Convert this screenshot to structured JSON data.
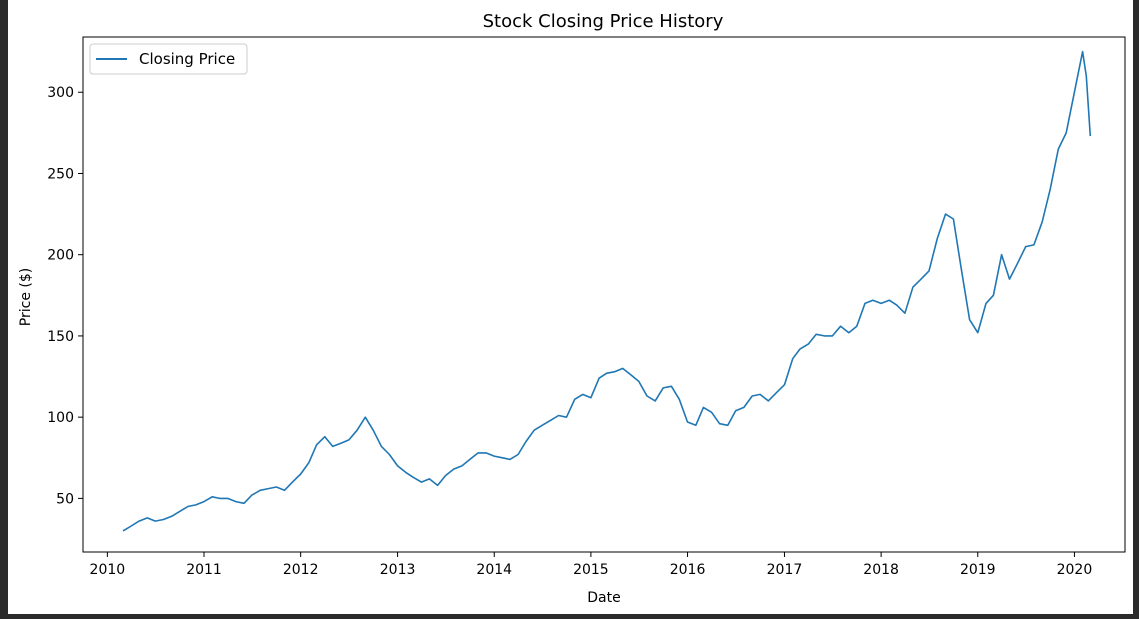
{
  "chart_data": {
    "type": "line",
    "title": "Stock Closing Price History",
    "xlabel": "Date",
    "ylabel": "Price ($)",
    "legend_position": "top-left",
    "grid": false,
    "xlim": [
      "2009-10-01",
      "2020-07-10"
    ],
    "ylim": [
      17,
      334
    ],
    "x_tick_labels": [
      "2010",
      "2011",
      "2012",
      "2013",
      "2014",
      "2015",
      "2016",
      "2017",
      "2018",
      "2019",
      "2020"
    ],
    "y_tick_labels": [
      "50",
      "100",
      "150",
      "200",
      "250",
      "300"
    ],
    "y_ticks": [
      50,
      100,
      150,
      200,
      250,
      300
    ],
    "series": [
      {
        "name": "Closing Price",
        "color": "#1f77b4",
        "x": [
          "2010-03-01",
          "2010-04-01",
          "2010-05-01",
          "2010-06-01",
          "2010-07-01",
          "2010-08-01",
          "2010-09-01",
          "2010-10-01",
          "2010-11-01",
          "2010-12-01",
          "2011-01-01",
          "2011-02-01",
          "2011-03-01",
          "2011-04-01",
          "2011-05-01",
          "2011-06-01",
          "2011-07-01",
          "2011-08-01",
          "2011-09-01",
          "2011-10-01",
          "2011-11-01",
          "2011-12-01",
          "2012-01-01",
          "2012-02-01",
          "2012-03-01",
          "2012-04-01",
          "2012-05-01",
          "2012-06-01",
          "2012-07-01",
          "2012-08-01",
          "2012-09-01",
          "2012-10-01",
          "2012-11-01",
          "2012-12-01",
          "2013-01-01",
          "2013-02-01",
          "2013-03-01",
          "2013-04-01",
          "2013-05-01",
          "2013-06-01",
          "2013-07-01",
          "2013-08-01",
          "2013-09-01",
          "2013-10-01",
          "2013-11-01",
          "2013-12-01",
          "2014-01-01",
          "2014-02-01",
          "2014-03-01",
          "2014-04-01",
          "2014-05-01",
          "2014-06-01",
          "2014-07-01",
          "2014-08-01",
          "2014-09-01",
          "2014-10-01",
          "2014-11-01",
          "2014-12-01",
          "2015-01-01",
          "2015-02-01",
          "2015-03-01",
          "2015-04-01",
          "2015-05-01",
          "2015-06-01",
          "2015-07-01",
          "2015-08-01",
          "2015-09-01",
          "2015-10-01",
          "2015-11-01",
          "2015-12-01",
          "2016-01-01",
          "2016-02-01",
          "2016-03-01",
          "2016-04-01",
          "2016-05-01",
          "2016-06-01",
          "2016-07-01",
          "2016-08-01",
          "2016-09-01",
          "2016-10-01",
          "2016-11-01",
          "2016-12-01",
          "2017-01-01",
          "2017-02-01",
          "2017-03-01",
          "2017-04-01",
          "2017-05-01",
          "2017-06-01",
          "2017-07-01",
          "2017-08-01",
          "2017-09-01",
          "2017-10-01",
          "2017-11-01",
          "2017-12-01",
          "2018-01-01",
          "2018-02-01",
          "2018-03-01",
          "2018-04-01",
          "2018-05-01",
          "2018-06-01",
          "2018-07-01",
          "2018-08-01",
          "2018-09-01",
          "2018-10-01",
          "2018-11-01",
          "2018-12-01",
          "2019-01-01",
          "2019-02-01",
          "2019-03-01",
          "2019-04-01",
          "2019-05-01",
          "2019-06-01",
          "2019-07-01",
          "2019-08-01",
          "2019-09-01",
          "2019-10-01",
          "2019-11-01",
          "2019-12-01",
          "2020-01-01",
          "2020-02-01",
          "2020-02-15",
          "2020-03-01"
        ],
        "values": [
          30,
          33,
          36,
          38,
          36,
          37,
          39,
          42,
          45,
          46,
          48,
          51,
          50,
          50,
          48,
          47,
          52,
          55,
          56,
          57,
          55,
          60,
          65,
          72,
          83,
          88,
          82,
          84,
          86,
          92,
          100,
          92,
          82,
          77,
          70,
          66,
          63,
          60,
          62,
          58,
          64,
          68,
          70,
          74,
          78,
          78,
          76,
          75,
          74,
          77,
          85,
          92,
          95,
          98,
          101,
          100,
          111,
          114,
          112,
          124,
          127,
          128,
          130,
          126,
          122,
          113,
          110,
          118,
          119,
          111,
          97,
          95,
          106,
          103,
          96,
          95,
          104,
          106,
          113,
          114,
          110,
          115,
          120,
          136,
          142,
          145,
          151,
          150,
          150,
          156,
          152,
          156,
          170,
          172,
          170,
          172,
          169,
          164,
          180,
          185,
          190,
          210,
          225,
          222,
          190,
          160,
          152,
          170,
          175,
          200,
          185,
          195,
          205,
          206,
          220,
          240,
          265,
          275,
          300,
          325,
          310,
          273
        ]
      }
    ]
  }
}
